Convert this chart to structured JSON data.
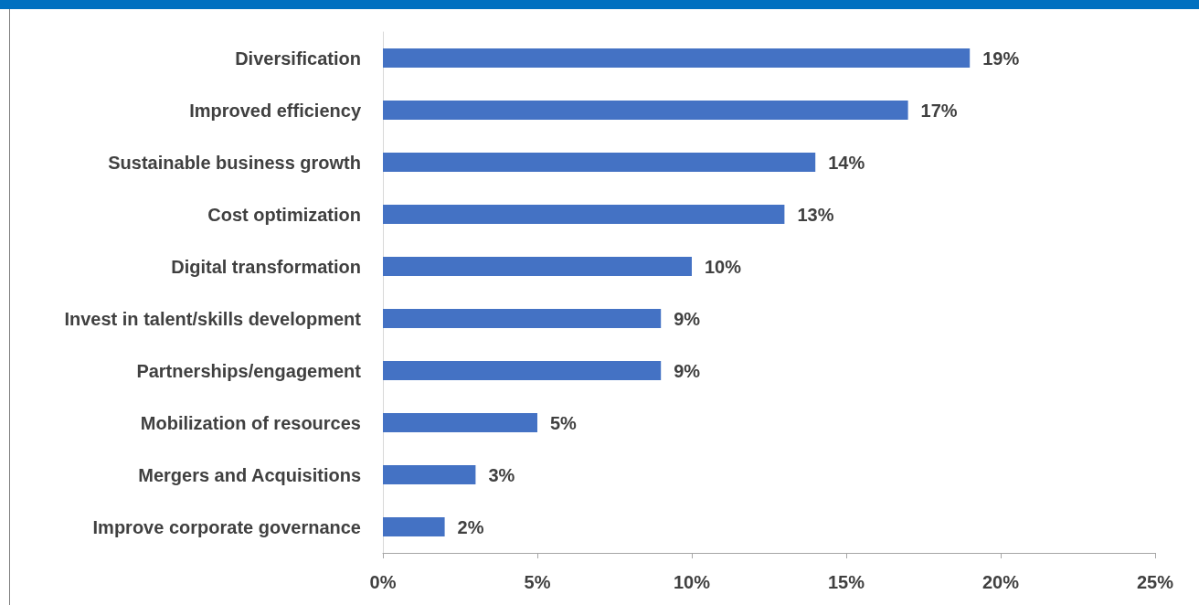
{
  "chart_data": {
    "type": "bar",
    "orientation": "horizontal",
    "categories": [
      "Diversification",
      "Improved efficiency",
      "Sustainable business growth",
      "Cost optimization",
      "Digital transformation",
      "Invest in talent/skills development",
      "Partnerships/engagement",
      "Mobilization of resources",
      "Mergers and Acquisitions",
      "Improve corporate governance"
    ],
    "values": [
      19,
      17,
      14,
      13,
      10,
      9,
      9,
      5,
      3,
      2
    ],
    "value_labels": [
      "19%",
      "17%",
      "14%",
      "13%",
      "10%",
      "9%",
      "9%",
      "5%",
      "3%",
      "2%"
    ],
    "color": "#4472c4",
    "xlim": [
      0,
      25
    ],
    "xticks": [
      {
        "value": 0,
        "label": "0%"
      },
      {
        "value": 5,
        "label": "5%"
      },
      {
        "value": 10,
        "label": "10%"
      },
      {
        "value": 15,
        "label": "15%"
      },
      {
        "value": 20,
        "label": "20%"
      },
      {
        "value": 25,
        "label": "25%"
      }
    ],
    "grid": false
  }
}
